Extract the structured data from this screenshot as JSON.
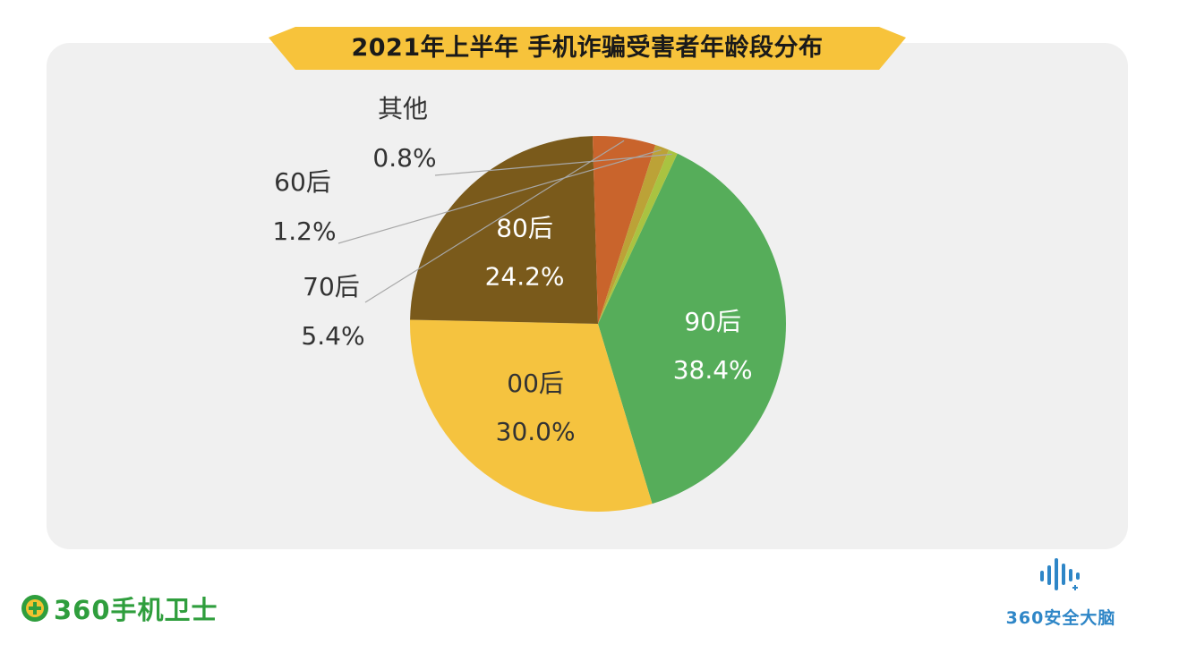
{
  "title": "2021年上半年 手机诈骗受害者年龄段分布",
  "colors": {
    "banner": "#f7c33b",
    "panel": "#f0f0f0",
    "label_dark": "#333333",
    "label_light": "#ffffff",
    "leader_line": "#a8a8a8",
    "brand_green": "#2f9e3d",
    "brand_blue": "#2e86c7"
  },
  "chart_data": {
    "type": "pie",
    "title": "2021年上半年 手机诈骗受害者年龄段分布",
    "legend": "none",
    "slices": [
      {
        "name": "90后",
        "value": 38.4,
        "label": "38.4%",
        "color": "#56ad5a",
        "label_placement": "inside"
      },
      {
        "name": "00后",
        "value": 30.0,
        "label": "30.0%",
        "color": "#f5c33f",
        "label_placement": "inside"
      },
      {
        "name": "80后",
        "value": 24.2,
        "label": "24.2%",
        "color": "#7a5a1b",
        "label_placement": "inside"
      },
      {
        "name": "70后",
        "value": 5.4,
        "label": "5.4%",
        "color": "#c9642c",
        "label_placement": "outside"
      },
      {
        "name": "60后",
        "value": 1.2,
        "label": "1.2%",
        "color": "#bca237",
        "label_placement": "outside"
      },
      {
        "name": "其他",
        "value": 0.8,
        "label": "0.8%",
        "color": "#a9c341",
        "label_placement": "outside"
      }
    ]
  },
  "branding": {
    "left_logo_text": "360手机卫士",
    "left_logo_icon": "plus-circle-icon",
    "right_logo_text": "360安全大脑",
    "right_logo_icon": "signal-bars-icon"
  }
}
